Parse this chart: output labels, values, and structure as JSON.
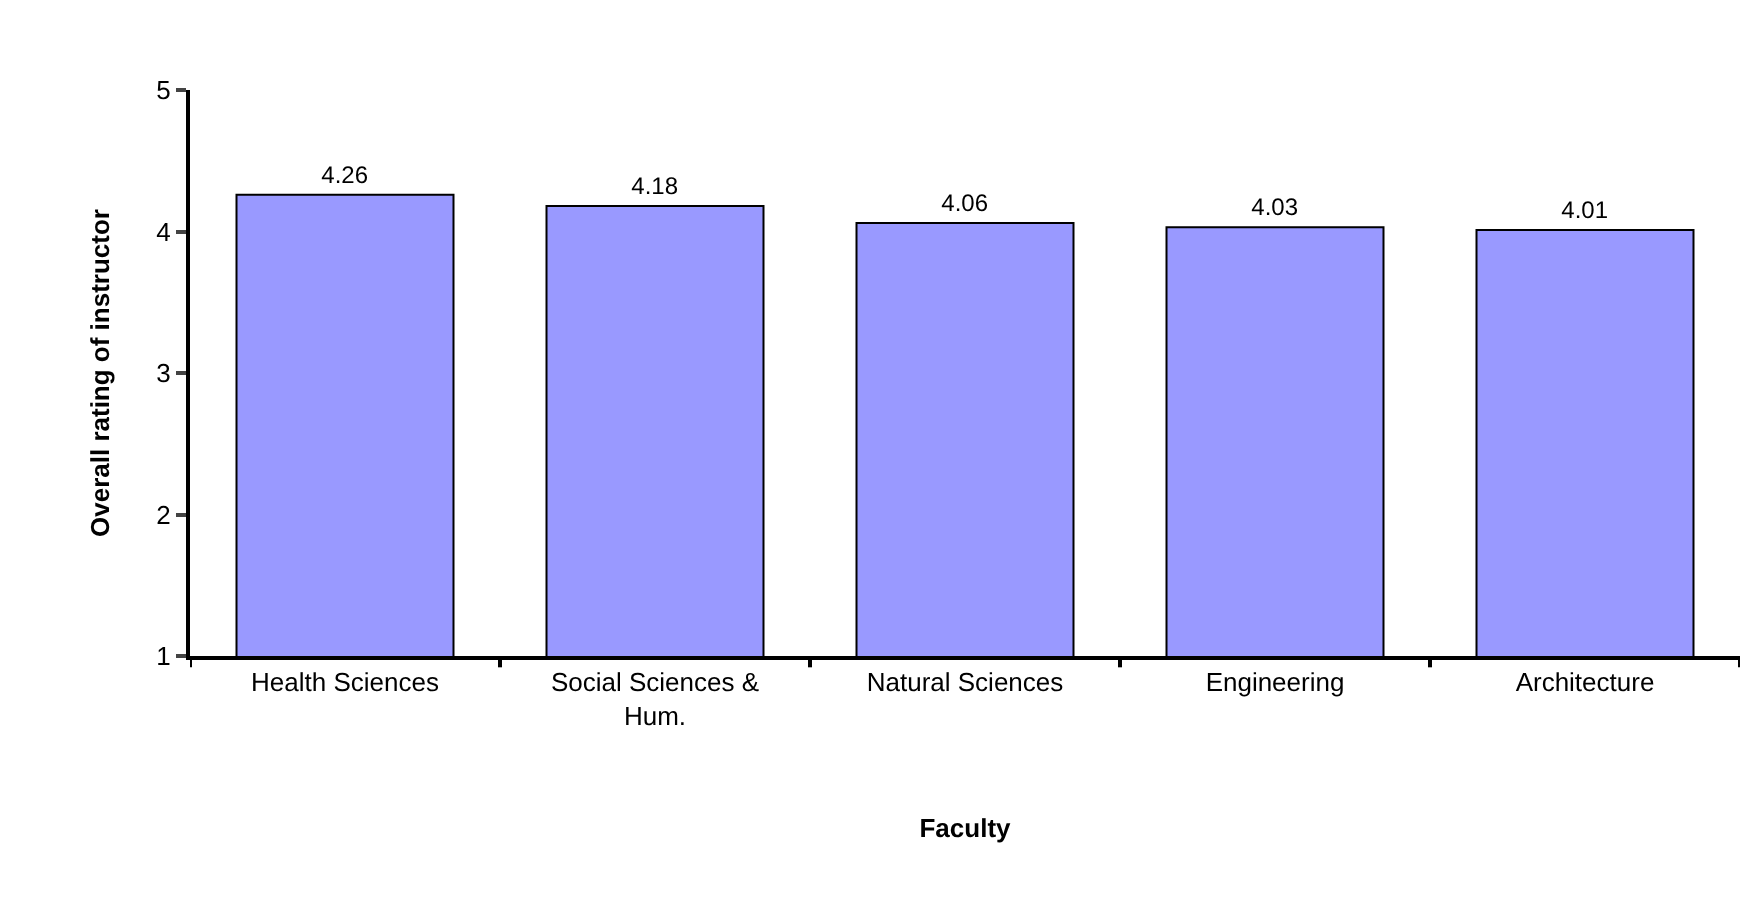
{
  "chart_data": {
    "type": "bar",
    "xlabel": "Faculty",
    "ylabel": "Overall rating of instructor",
    "categories": [
      "Health Sciences",
      "Social Sciences & Hum.",
      "Natural Sciences",
      "Engineering",
      "Architecture"
    ],
    "values": [
      4.26,
      4.18,
      4.06,
      4.03,
      4.01
    ],
    "color": "#9999ff",
    "ylim": [
      1,
      5
    ],
    "yticks": [
      1,
      2,
      3,
      4,
      5
    ],
    "data_labels": true
  }
}
